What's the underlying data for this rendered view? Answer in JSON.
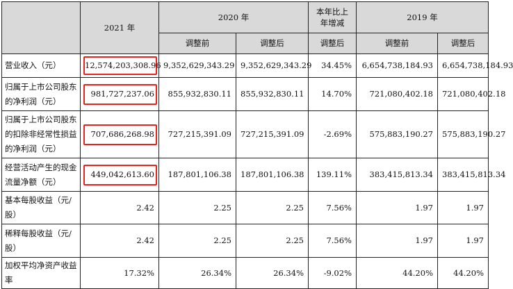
{
  "header": {
    "y2021": "2021 年",
    "y2020": "2020 年",
    "change": "本年比上年增减",
    "y2019": "2019 年",
    "before": "调整前",
    "after": "调整后",
    "after2": "调整后",
    "before2019": "调整前",
    "after2019": "调整后"
  },
  "rows": [
    {
      "label": "营业收入（元）",
      "v2021": "12,574,203,308.96",
      "v2020a": "9,352,629,343.29",
      "v2020b": "9,352,629,343.29",
      "chg": "34.45%",
      "v2019a": "6,654,738,184.93",
      "v2019b": "6,654,738,184.93"
    },
    {
      "label": "归属于上市公司股东的净利润（元）",
      "v2021": "981,727,237.06",
      "v2020a": "855,932,830.11",
      "v2020b": "855,932,830.11",
      "chg": "14.70%",
      "v2019a": "721,080,402.18",
      "v2019b": "721,080,402.18"
    },
    {
      "label": "归属于上市公司股东的扣除非经常性损益的净利润（元）",
      "v2021": "707,686,268.98",
      "v2020a": "727,215,391.09",
      "v2020b": "727,215,391.09",
      "chg": "-2.69%",
      "v2019a": "575,883,190.27",
      "v2019b": "575,883,190.27"
    },
    {
      "label": "经营活动产生的现金流量净额（元）",
      "v2021": "449,042,613.60",
      "v2020a": "187,801,106.38",
      "v2020b": "187,801,106.38",
      "chg": "139.11%",
      "v2019a": "383,415,813.34",
      "v2019b": "383,415,813.34"
    },
    {
      "label": "基本每股收益（元/股）",
      "v2021": "2.42",
      "v2020a": "2.25",
      "v2020b": "2.25",
      "chg": "7.56%",
      "v2019a": "1.97",
      "v2019b": "1.97"
    },
    {
      "label": "稀释每股收益（元/股）",
      "v2021": "2.42",
      "v2020a": "2.25",
      "v2020b": "2.25",
      "chg": "7.56%",
      "v2019a": "1.97",
      "v2019b": "1.97"
    },
    {
      "label": "加权平均净资产收益率",
      "v2021": "17.32%",
      "v2020a": "26.34%",
      "v2020b": "26.34%",
      "chg": "-9.02%",
      "v2019a": "44.20%",
      "v2019b": "44.20%"
    }
  ],
  "highlight_color": "#e8211a"
}
